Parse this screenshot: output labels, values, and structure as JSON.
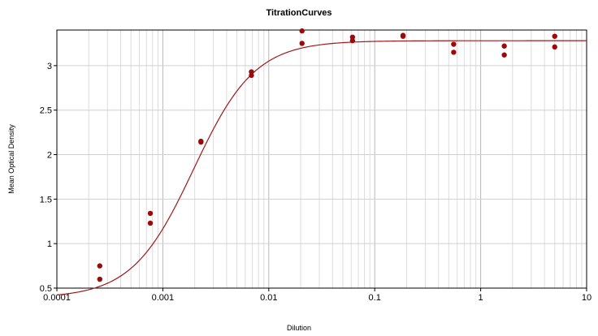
{
  "chart_data": {
    "type": "scatter",
    "title": "TitrationCurves",
    "xlabel": "Dilution",
    "ylabel": "Mean Optical Density",
    "x_scale": "log",
    "xlim": [
      0.0001,
      10
    ],
    "ylim": [
      0.5,
      3.4
    ],
    "grid": true,
    "legend": "none",
    "x_ticks": [
      {
        "value": 0.0001,
        "label": "0.0001"
      },
      {
        "value": 0.001,
        "label": "0.001"
      },
      {
        "value": 0.01,
        "label": "0.01"
      },
      {
        "value": 0.1,
        "label": "0.1"
      },
      {
        "value": 1,
        "label": "1"
      },
      {
        "value": 10,
        "label": "10"
      }
    ],
    "y_ticks": [
      {
        "value": 0.5,
        "label": "0.5"
      },
      {
        "value": 1,
        "label": "1"
      },
      {
        "value": 1.5,
        "label": "1.5"
      },
      {
        "value": 2,
        "label": "2"
      },
      {
        "value": 2.5,
        "label": "2.5"
      },
      {
        "value": 3,
        "label": "3"
      }
    ],
    "series": [
      {
        "color": "#9b0a0a",
        "points": [
          {
            "x": 0.000254,
            "y": 0.75
          },
          {
            "x": 0.000254,
            "y": 0.6
          },
          {
            "x": 0.000762,
            "y": 1.34
          },
          {
            "x": 0.000762,
            "y": 1.23
          },
          {
            "x": 0.00229,
            "y": 2.15
          },
          {
            "x": 0.00229,
            "y": 2.14
          },
          {
            "x": 0.00686,
            "y": 2.93
          },
          {
            "x": 0.00686,
            "y": 2.89
          },
          {
            "x": 0.0206,
            "y": 3.39
          },
          {
            "x": 0.0206,
            "y": 3.25
          },
          {
            "x": 0.0617,
            "y": 3.32
          },
          {
            "x": 0.0617,
            "y": 3.28
          },
          {
            "x": 0.185,
            "y": 3.34
          },
          {
            "x": 0.185,
            "y": 3.33
          },
          {
            "x": 0.556,
            "y": 3.24
          },
          {
            "x": 0.556,
            "y": 3.15
          },
          {
            "x": 1.67,
            "y": 3.22
          },
          {
            "x": 1.67,
            "y": 3.12
          },
          {
            "x": 5.0,
            "y": 3.33
          },
          {
            "x": 5.0,
            "y": 3.21
          }
        ]
      }
    ],
    "fit_curve": {
      "color": "#a01818",
      "model": "4PL",
      "bottom": 0.39,
      "top": 3.28,
      "ec50": 0.00195,
      "hill": 1.5
    }
  }
}
